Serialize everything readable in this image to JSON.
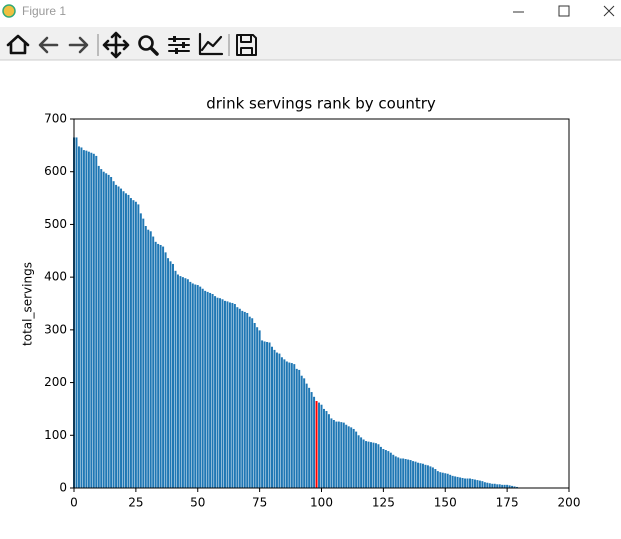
{
  "window": {
    "title": "Figure 1"
  },
  "chart_data": {
    "type": "bar",
    "title": "drink servings rank by country",
    "ylabel": "total_servings",
    "x": [
      0,
      1,
      2,
      3,
      4,
      5,
      6,
      7,
      8,
      9,
      10,
      11,
      12,
      13,
      14,
      15,
      16,
      17,
      18,
      19,
      20,
      21,
      22,
      23,
      24,
      25,
      26,
      27,
      28,
      29,
      30,
      31,
      32,
      33,
      34,
      35,
      36,
      37,
      38,
      39,
      40,
      41,
      42,
      43,
      44,
      45,
      46,
      47,
      48,
      49,
      50,
      51,
      52,
      53,
      54,
      55,
      56,
      57,
      58,
      59,
      60,
      61,
      62,
      63,
      64,
      65,
      66,
      67,
      68,
      69,
      70,
      71,
      72,
      73,
      74,
      75,
      76,
      77,
      78,
      79,
      80,
      81,
      82,
      83,
      84,
      85,
      86,
      87,
      88,
      89,
      90,
      91,
      92,
      93,
      94,
      95,
      96,
      97,
      98,
      99,
      100,
      101,
      102,
      103,
      104,
      105,
      106,
      107,
      108,
      109,
      110,
      111,
      112,
      113,
      114,
      115,
      116,
      117,
      118,
      119,
      120,
      121,
      122,
      123,
      124,
      125,
      126,
      127,
      128,
      129,
      130,
      131,
      132,
      133,
      134,
      135,
      136,
      137,
      138,
      139,
      140,
      141,
      142,
      143,
      144,
      145,
      146,
      147,
      148,
      149,
      150,
      151,
      152,
      153,
      154,
      155,
      156,
      157,
      158,
      159,
      160,
      161,
      162,
      163,
      164,
      165,
      166,
      167,
      168,
      169,
      170,
      171,
      172,
      173,
      174,
      175,
      176,
      177,
      178,
      179,
      180,
      181,
      182,
      183,
      184,
      185,
      186,
      187,
      188,
      189,
      190,
      191,
      192
    ],
    "values": [
      665,
      665,
      648,
      646,
      641,
      640,
      638,
      636,
      634,
      630,
      611,
      605,
      600,
      597,
      594,
      590,
      582,
      575,
      572,
      568,
      563,
      559,
      556,
      550,
      546,
      543,
      538,
      521,
      511,
      497,
      490,
      487,
      477,
      467,
      463,
      461,
      458,
      447,
      436,
      430,
      425,
      412,
      405,
      402,
      400,
      398,
      396,
      391,
      388,
      386,
      385,
      382,
      378,
      374,
      372,
      370,
      368,
      364,
      361,
      360,
      358,
      355,
      354,
      352,
      351,
      349,
      343,
      340,
      336,
      334,
      332,
      325,
      322,
      313,
      305,
      299,
      280,
      278,
      277,
      276,
      268,
      262,
      257,
      255,
      248,
      244,
      240,
      238,
      237,
      235,
      226,
      224,
      213,
      208,
      198,
      190,
      182,
      173,
      165,
      162,
      158,
      150,
      146,
      140,
      132,
      129,
      126,
      126,
      125,
      124,
      120,
      117,
      115,
      112,
      107,
      100,
      96,
      92,
      89,
      88,
      87,
      86,
      85,
      83,
      78,
      74,
      72,
      70,
      67,
      63,
      60,
      58,
      56,
      56,
      55,
      54,
      53,
      51,
      50,
      48,
      47,
      46,
      44,
      43,
      41,
      39,
      36,
      32,
      30,
      29,
      28,
      27,
      25,
      23,
      22,
      21,
      20,
      19,
      18,
      18,
      18,
      17,
      16,
      15,
      14,
      13,
      11,
      10,
      9,
      8,
      8,
      7,
      7,
      6,
      6,
      6,
      5,
      4,
      3,
      2,
      0,
      0,
      0,
      0,
      0,
      0,
      0,
      0,
      0,
      0,
      0,
      0,
      0
    ],
    "color": "#1f77b4",
    "highlight": {
      "x": 98,
      "color": "red"
    },
    "xlim": [
      0,
      200
    ],
    "xticks": [
      0,
      25,
      50,
      75,
      100,
      125,
      150,
      175,
      200
    ],
    "ylim": [
      0,
      700
    ],
    "yticks": [
      0,
      100,
      200,
      300,
      400,
      500,
      600,
      700
    ]
  }
}
